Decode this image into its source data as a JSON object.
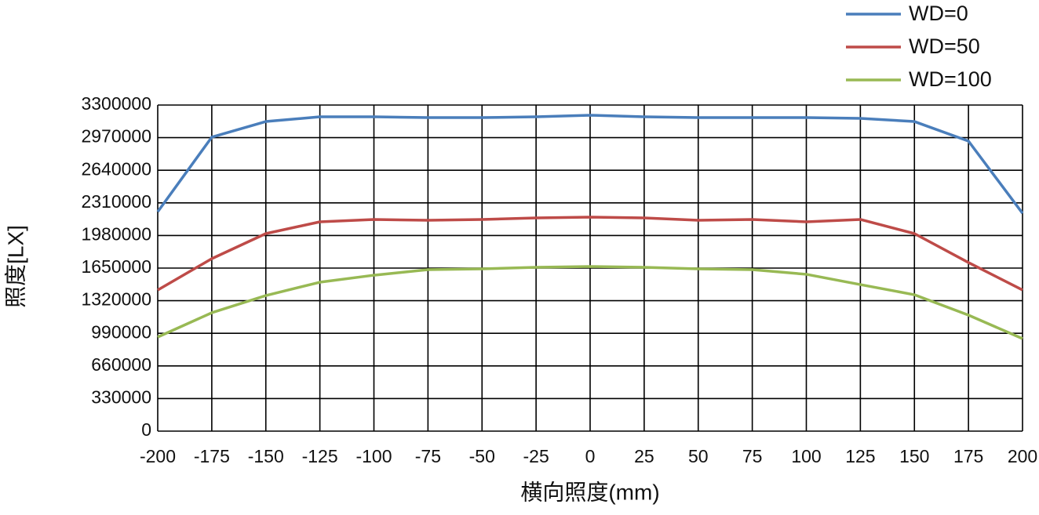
{
  "chart_data": {
    "type": "line",
    "x_label": "横向照度(mm)",
    "y_label": "照度[LX]",
    "x": [
      -200,
      -175,
      -150,
      -125,
      -100,
      -75,
      -50,
      -25,
      0,
      25,
      50,
      75,
      100,
      125,
      150,
      175,
      200
    ],
    "series": [
      {
        "name": "WD=0",
        "color": "#4a7ebb",
        "values": [
          2220000,
          2975000,
          3133000,
          3181000,
          3181000,
          3173000,
          3173000,
          3181000,
          3197000,
          3181000,
          3173000,
          3173000,
          3173000,
          3165000,
          3133000,
          2935000,
          2205000
        ]
      },
      {
        "name": "WD=50",
        "color": "#be4b48",
        "values": [
          1428000,
          1745000,
          1999000,
          2118000,
          2142000,
          2134000,
          2142000,
          2158000,
          2166000,
          2158000,
          2134000,
          2142000,
          2118000,
          2142000,
          1999000,
          1706000,
          1428000
        ]
      },
      {
        "name": "WD=100",
        "color": "#98b954",
        "values": [
          952000,
          1198000,
          1372000,
          1507000,
          1578000,
          1634000,
          1642000,
          1658000,
          1666000,
          1658000,
          1642000,
          1634000,
          1587000,
          1483000,
          1380000,
          1174000,
          936000
        ]
      }
    ],
    "xlim": [
      -200,
      200
    ],
    "xticks": [
      -200,
      -175,
      -150,
      -125,
      -100,
      -75,
      -50,
      -25,
      0,
      25,
      50,
      75,
      100,
      125,
      150,
      175,
      200
    ],
    "ylim": [
      0,
      3300000
    ],
    "yticks": [
      0,
      330000,
      660000,
      990000,
      1320000,
      1650000,
      1980000,
      2310000,
      2640000,
      2970000,
      3300000
    ],
    "grid": true,
    "legend": "top-right"
  }
}
